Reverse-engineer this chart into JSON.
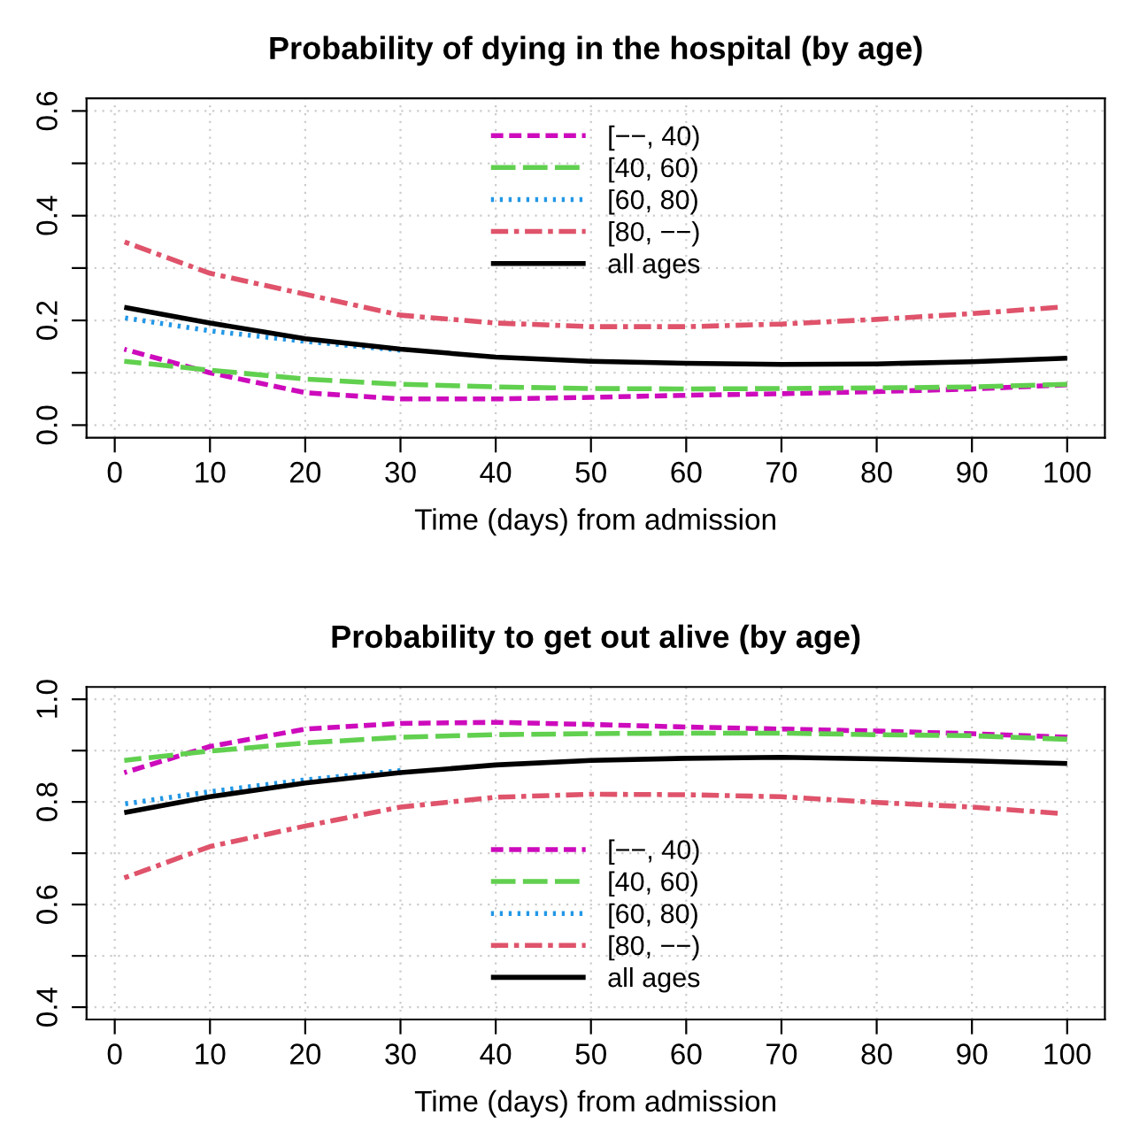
{
  "chart_data": [
    {
      "type": "line",
      "title": "Probability of dying in the hospital (by age)",
      "xlabel": "Time (days) from admission",
      "legend": "top",
      "grid": true,
      "xlim": [
        -2.96,
        103.96
      ],
      "xticks": [
        0,
        10,
        20,
        30,
        40,
        50,
        60,
        70,
        80,
        90,
        100
      ],
      "ylim": [
        -0.024,
        0.624
      ],
      "yticks": [
        {
          "value": 0.0,
          "label": "0.0"
        },
        {
          "value": 0.1,
          "label": null
        },
        {
          "value": 0.2,
          "label": "0.2"
        },
        {
          "value": 0.3,
          "label": null
        },
        {
          "value": 0.4,
          "label": "0.4"
        },
        {
          "value": 0.5,
          "label": null
        },
        {
          "value": 0.6,
          "label": "0.6"
        }
      ],
      "series": [
        {
          "name": "[−−, 40)",
          "color": "#cd0bbc",
          "line_style": "dashed",
          "x": [
            1,
            10,
            20,
            30,
            40,
            50,
            60,
            70,
            80,
            90,
            100
          ],
          "values": [
            0.145,
            0.1,
            0.062,
            0.05,
            0.05,
            0.053,
            0.057,
            0.06,
            0.064,
            0.069,
            0.077
          ]
        },
        {
          "name": "[40, 60)",
          "color": "#61d04f",
          "line_style": "longdash",
          "x": [
            1,
            10,
            20,
            30,
            40,
            50,
            60,
            70,
            80,
            90,
            100
          ],
          "values": [
            0.122,
            0.105,
            0.088,
            0.078,
            0.073,
            0.07,
            0.069,
            0.07,
            0.071,
            0.073,
            0.078
          ]
        },
        {
          "name": "[60, 80)",
          "color": "#2297e6",
          "line_style": "dotted",
          "x": [
            1,
            10,
            20,
            30
          ],
          "values": [
            0.205,
            0.18,
            0.16,
            0.143
          ]
        },
        {
          "name": "[80, −−)",
          "color": "#df536b",
          "line_style": "dashdot",
          "x": [
            1,
            10,
            20,
            30,
            40,
            50,
            60,
            70,
            80,
            90,
            99
          ],
          "values": [
            0.35,
            0.29,
            0.25,
            0.21,
            0.195,
            0.188,
            0.188,
            0.193,
            0.202,
            0.213,
            0.225
          ]
        },
        {
          "name": "all ages",
          "color": "#000000",
          "line_style": "solid",
          "x": [
            1,
            10,
            20,
            30,
            40,
            50,
            60,
            70,
            80,
            90,
            100
          ],
          "values": [
            0.225,
            0.195,
            0.165,
            0.145,
            0.13,
            0.122,
            0.118,
            0.116,
            0.117,
            0.121,
            0.128
          ]
        }
      ]
    },
    {
      "type": "line",
      "title": "Probability to get out alive (by age)",
      "xlabel": "Time (days) from admission",
      "legend": "bottom",
      "grid": true,
      "xlim": [
        -2.96,
        103.96
      ],
      "xticks": [
        0,
        10,
        20,
        30,
        40,
        50,
        60,
        70,
        80,
        90,
        100
      ],
      "ylim": [
        0.376,
        1.024
      ],
      "yticks": [
        {
          "value": 0.4,
          "label": "0.4"
        },
        {
          "value": 0.5,
          "label": null
        },
        {
          "value": 0.6,
          "label": "0.6"
        },
        {
          "value": 0.7,
          "label": null
        },
        {
          "value": 0.8,
          "label": "0.8"
        },
        {
          "value": 0.9,
          "label": null
        },
        {
          "value": 1.0,
          "label": "1.0"
        }
      ],
      "series": [
        {
          "name": "[−−, 40)",
          "color": "#cd0bbc",
          "line_style": "dashed",
          "x": [
            1,
            10,
            20,
            30,
            40,
            50,
            60,
            70,
            80,
            90,
            100
          ],
          "values": [
            0.857,
            0.908,
            0.942,
            0.953,
            0.955,
            0.951,
            0.946,
            0.942,
            0.938,
            0.933,
            0.926
          ]
        },
        {
          "name": "[40, 60)",
          "color": "#61d04f",
          "line_style": "longdash",
          "x": [
            1,
            10,
            20,
            30,
            40,
            50,
            60,
            70,
            80,
            90,
            100
          ],
          "values": [
            0.881,
            0.899,
            0.915,
            0.926,
            0.931,
            0.933,
            0.934,
            0.934,
            0.931,
            0.929,
            0.922
          ]
        },
        {
          "name": "[60, 80)",
          "color": "#2297e6",
          "line_style": "dotted",
          "x": [
            1,
            10,
            20,
            30
          ],
          "values": [
            0.796,
            0.82,
            0.843,
            0.861
          ]
        },
        {
          "name": "[80, −−)",
          "color": "#df536b",
          "line_style": "dashdot",
          "x": [
            1,
            10,
            20,
            30,
            40,
            50,
            60,
            70,
            80,
            90,
            99
          ],
          "values": [
            0.652,
            0.713,
            0.753,
            0.79,
            0.809,
            0.815,
            0.814,
            0.81,
            0.799,
            0.79,
            0.778
          ]
        },
        {
          "name": "all ages",
          "color": "#000000",
          "line_style": "solid",
          "x": [
            1,
            10,
            20,
            30,
            40,
            50,
            60,
            70,
            80,
            90,
            100
          ],
          "values": [
            0.779,
            0.81,
            0.837,
            0.857,
            0.872,
            0.881,
            0.885,
            0.887,
            0.884,
            0.88,
            0.875
          ]
        }
      ]
    }
  ]
}
